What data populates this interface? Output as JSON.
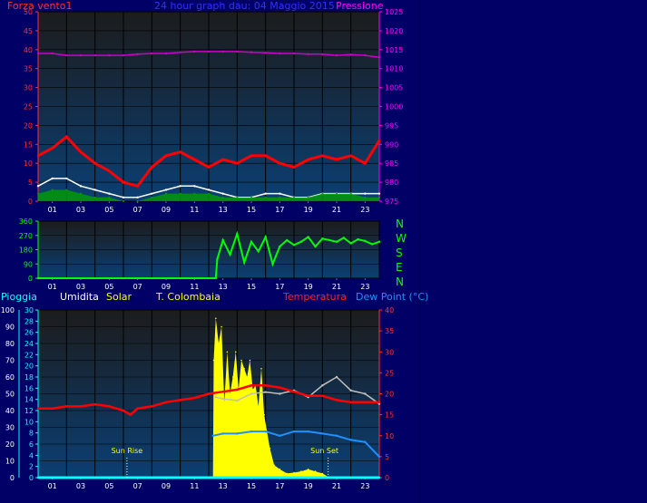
{
  "colors": {
    "background": "#000066",
    "plot_bg_top": "#1c1c1c",
    "plot_bg_bottom": "#0b3f73",
    "wind_force": "#ff0000",
    "wind_gust_white": "#ffffff",
    "wind_green": "#00a000",
    "pressure": "#cc00cc",
    "direction": "#00ff00",
    "rain": "#00ffff",
    "humidity": "#c0c0c0",
    "solar": "#ffff00",
    "temperature": "#ff0000",
    "dewpoint": "#1e90ff"
  },
  "header": {
    "left_label": "Forza vento1",
    "title": "24 hour graph dau: 04 Maggio 2015",
    "right_label": "Pressione"
  },
  "direction_letters": [
    "N",
    "W",
    "S",
    "E",
    "N"
  ],
  "bottom_legend": {
    "rain": "Pioggia",
    "humidity": "Umidita",
    "solar": "Solar",
    "station": "T. Colombaia",
    "temperature": "Temperatura",
    "dewpoint": "Dew Point (°C)"
  },
  "annotations": {
    "sun_rise": "Sun Rise",
    "sun_set": "Sun Set"
  },
  "chart_data": [
    {
      "type": "line",
      "name": "wind-pressure",
      "x_ticks": [
        "01",
        "03",
        "05",
        "07",
        "09",
        "11",
        "13",
        "15",
        "17",
        "19",
        "21",
        "23"
      ],
      "x_range": [
        0,
        24
      ],
      "y_left": {
        "range": [
          0,
          50
        ],
        "ticks": [
          "0",
          "5",
          "10",
          "15",
          "20",
          "25",
          "30",
          "35",
          "40",
          "45",
          "50"
        ]
      },
      "y_right": {
        "range": [
          975,
          1025
        ],
        "ticks": [
          "975",
          "980",
          "985",
          "990",
          "995",
          "1000",
          "1005",
          "1010",
          "1015",
          "1020",
          "1025"
        ]
      },
      "series": [
        {
          "key": "wind_force",
          "axis": "left",
          "x": [
            0,
            1,
            2,
            3,
            4,
            5,
            6,
            7,
            8,
            9,
            10,
            11,
            12,
            13,
            14,
            15,
            16,
            17,
            18,
            19,
            20,
            21,
            22,
            23,
            24
          ],
          "y": [
            12,
            14,
            17,
            13,
            10,
            8,
            5,
            4,
            9,
            12,
            13,
            11,
            9,
            11,
            10,
            12,
            12,
            10,
            9,
            11,
            12,
            11,
            12,
            10,
            16
          ]
        },
        {
          "key": "wind_gust_white",
          "axis": "left",
          "x": [
            0,
            1,
            2,
            3,
            4,
            5,
            6,
            7,
            8,
            9,
            10,
            11,
            12,
            13,
            14,
            15,
            16,
            17,
            18,
            19,
            20,
            21,
            22,
            23,
            24
          ],
          "y": [
            4,
            6,
            6,
            4,
            3,
            2,
            1,
            1,
            2,
            3,
            4,
            4,
            3,
            2,
            1,
            1,
            2,
            2,
            1,
            1,
            2,
            2,
            2,
            2,
            2
          ]
        },
        {
          "key": "wind_green",
          "axis": "left",
          "x": [
            0,
            1,
            2,
            3,
            4,
            5,
            6,
            7,
            8,
            9,
            10,
            11,
            12,
            13,
            14,
            15,
            16,
            17,
            18,
            19,
            20,
            21,
            22,
            23,
            24
          ],
          "y": [
            2,
            3,
            3,
            2,
            1,
            1,
            0,
            0,
            1,
            2,
            2,
            2,
            2,
            1,
            1,
            1,
            1,
            1,
            1,
            1,
            2,
            2,
            2,
            1,
            1
          ]
        },
        {
          "key": "pressure",
          "axis": "right",
          "x": [
            0,
            1,
            2,
            3,
            4,
            5,
            6,
            7,
            8,
            9,
            10,
            11,
            12,
            13,
            14,
            15,
            16,
            17,
            18,
            19,
            20,
            21,
            22,
            23,
            24
          ],
          "y": [
            1014,
            1014,
            1013.5,
            1013.5,
            1013.5,
            1013.5,
            1013.5,
            1013.8,
            1014,
            1014,
            1014.3,
            1014.5,
            1014.5,
            1014.5,
            1014.5,
            1014.3,
            1014.2,
            1014,
            1014,
            1013.8,
            1013.8,
            1013.5,
            1013.7,
            1013.5,
            1013
          ]
        }
      ]
    },
    {
      "type": "line",
      "name": "wind-direction",
      "x_ticks": [
        "01",
        "03",
        "05",
        "07",
        "09",
        "11",
        "13",
        "15",
        "17",
        "19",
        "21",
        "23"
      ],
      "x_range": [
        0,
        24
      ],
      "y_left": {
        "range": [
          0,
          360
        ],
        "ticks": [
          "0",
          "90",
          "180",
          "270",
          "360"
        ]
      },
      "series": [
        {
          "key": "direction",
          "x": [
            0,
            12.5,
            12.6,
            13,
            13.5,
            14,
            14.5,
            15,
            15.5,
            16,
            16.5,
            17,
            17.5,
            18,
            18.5,
            19,
            19.5,
            20,
            20.5,
            21,
            21.5,
            22,
            22.5,
            23,
            23.5,
            24
          ],
          "y": [
            0,
            0,
            120,
            240,
            150,
            280,
            100,
            230,
            170,
            260,
            90,
            200,
            240,
            210,
            230,
            260,
            200,
            250,
            240,
            230,
            255,
            220,
            245,
            235,
            215,
            230
          ]
        }
      ]
    },
    {
      "type": "line",
      "name": "rain-solar-temperature",
      "x_ticks": [
        "01",
        "03",
        "05",
        "07",
        "09",
        "11",
        "13",
        "15",
        "17",
        "19",
        "21",
        "23"
      ],
      "x_range": [
        0,
        24
      ],
      "y_humidity": {
        "range": [
          0,
          100
        ],
        "ticks": [
          "0",
          "10",
          "20",
          "30",
          "40",
          "50",
          "60",
          "70",
          "80",
          "90",
          "100"
        ]
      },
      "y_rain": {
        "range": [
          0,
          30
        ],
        "ticks": [
          "0",
          "2",
          "4",
          "6",
          "8",
          "10",
          "12",
          "14",
          "16",
          "18",
          "20",
          "22",
          "24",
          "26",
          "28",
          "30"
        ]
      },
      "y_right": {
        "range": [
          0,
          40
        ],
        "ticks": [
          "0",
          "5",
          "10",
          "15",
          "20",
          "25",
          "30",
          "35",
          "40"
        ]
      },
      "series": [
        {
          "key": "rain",
          "x": [
            0,
            24
          ],
          "y": [
            0,
            0
          ]
        },
        {
          "key": "solar",
          "x": [
            12.3,
            12.35,
            12.5,
            12.7,
            12.9,
            13.1,
            13.3,
            13.5,
            13.7,
            13.9,
            14.1,
            14.3,
            14.5,
            14.7,
            14.9,
            15.1,
            15.3,
            15.5,
            15.7,
            15.9,
            16.1,
            16.3,
            16.6,
            17,
            17.5,
            18,
            18.5,
            19,
            19.5,
            20,
            20.5
          ],
          "y": [
            0,
            28,
            38,
            32,
            36,
            18,
            30,
            20,
            24,
            30,
            21,
            28,
            26,
            24,
            28,
            21,
            22,
            17,
            26,
            15,
            11,
            7,
            3,
            2,
            1,
            1.2,
            1.5,
            2,
            1.5,
            1,
            0
          ]
        },
        {
          "key": "temperature",
          "x": [
            0,
            1,
            2,
            3,
            4,
            5,
            6,
            6.5,
            7,
            8,
            9,
            10,
            11,
            12,
            13,
            14,
            15,
            16,
            17,
            18,
            19,
            20,
            21,
            22,
            23,
            24
          ],
          "y": [
            16.5,
            16.5,
            17,
            17,
            17.5,
            17,
            16,
            15,
            16.5,
            17,
            18,
            18.5,
            19,
            20,
            20.5,
            21,
            22,
            22,
            21.5,
            20.5,
            19.5,
            19.5,
            18.5,
            18,
            18,
            18
          ]
        },
        {
          "key": "humidity",
          "x": [
            12.5,
            13,
            14,
            15,
            16,
            17,
            18,
            19,
            20,
            21,
            22,
            23,
            24
          ],
          "y": [
            48,
            47,
            46,
            50,
            51,
            50,
            52,
            48,
            55,
            60,
            52,
            50,
            44
          ]
        },
        {
          "key": "dewpoint",
          "x": [
            12.3,
            13,
            14,
            15,
            16,
            17,
            18,
            19,
            20,
            21,
            22,
            23,
            24
          ],
          "y": [
            10,
            10.5,
            10.5,
            11,
            11,
            10,
            11,
            11,
            10.5,
            10,
            9,
            8.5,
            5
          ]
        }
      ]
    }
  ]
}
